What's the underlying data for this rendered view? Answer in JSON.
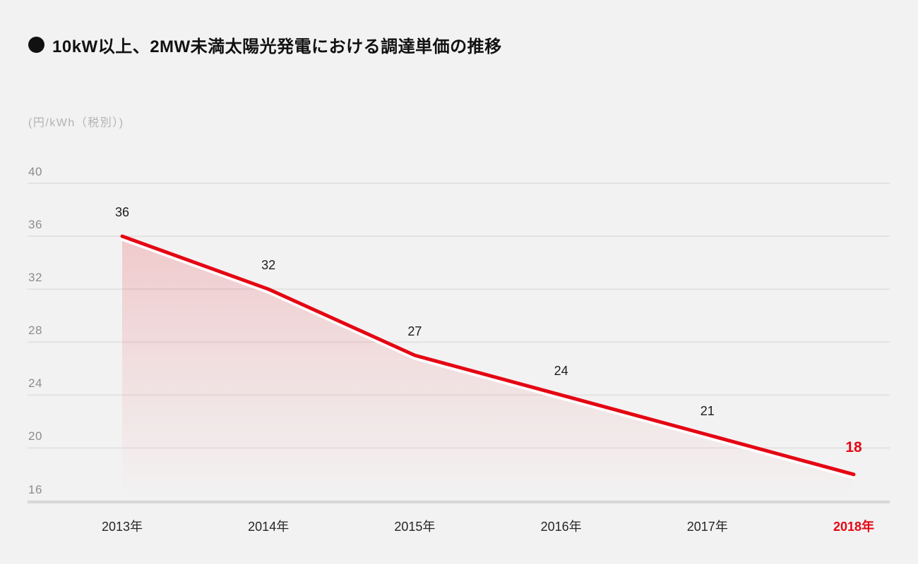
{
  "chart": {
    "bullet": "●",
    "title_text": "10kW以上、2MW未満太陽光発電における調達単価の推移",
    "unit_label": "(円/kWh（税別）)"
  },
  "chart_data": {
    "type": "line",
    "subtype": "line-with-area-fill",
    "title": "10kW以上、2MW未満太陽光発電における調達単価の推移",
    "unit_label": "(円/kWh（税別）)",
    "categories": [
      "2013年",
      "2014年",
      "2015年",
      "2016年",
      "2017年",
      "2018年"
    ],
    "series": [
      {
        "name": "調達単価",
        "values": [
          36,
          32,
          27,
          24,
          21,
          18
        ]
      }
    ],
    "data_labels": [
      "36",
      "32",
      "27",
      "24",
      "21",
      "18"
    ],
    "y_ticks": [
      40,
      36,
      32,
      28,
      24,
      20,
      16
    ],
    "ylim": [
      16,
      40
    ],
    "xlabel": "",
    "ylabel": "(円/kWh（税別）)",
    "grid": true,
    "legend": "none",
    "highlight_last_point": true,
    "colors": {
      "background": "#f2f2f2",
      "line": "#e50613",
      "line_underlay": "#ffffff",
      "area_top": "rgba(229,6,19,0.17)",
      "area_mid": "rgba(229,6,19,0.08)",
      "area_bottom": "rgba(229,6,19,0)",
      "grid": "#e4e2e3",
      "axis_bottom": "#d8d6d7",
      "tick_label": "#8c8c8c",
      "unit_label": "#b5b2b3",
      "x_label": "#262626",
      "data_label": "#1c1c1c",
      "highlight": "#e50613",
      "title": "#111111"
    }
  }
}
